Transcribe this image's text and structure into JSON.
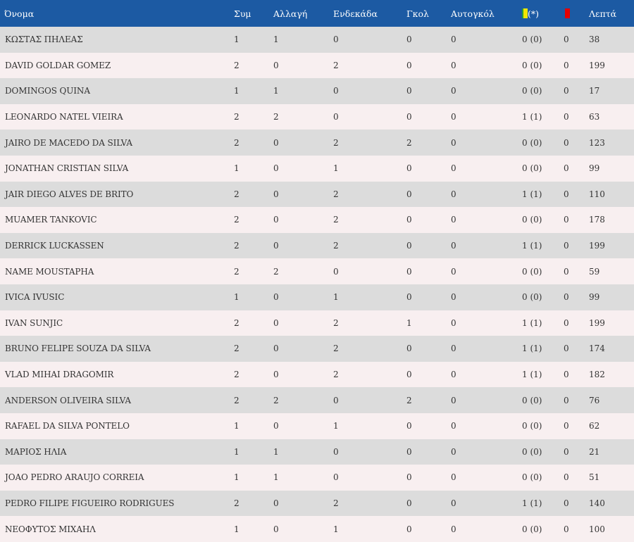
{
  "headers": {
    "name": "Όνομα",
    "apps": "Συμ",
    "subs": "Αλλαγή",
    "lineup": "Ενδεκάδα",
    "goals": "Γκολ",
    "own_goals": "Αυτογκόλ",
    "yellow_note": "(*)",
    "minutes": "Λεπτά"
  },
  "players": [
    {
      "name": "ΚΩΣΤΑΣ ΠΗΛΕΑΣ",
      "apps": "1",
      "subs": "1",
      "lineup": "0",
      "goals": "0",
      "own_goals": "0",
      "yellow": "0 (0)",
      "red": "0",
      "minutes": "38"
    },
    {
      "name": "DAVID GOLDAR GOMEZ",
      "apps": "2",
      "subs": "0",
      "lineup": "2",
      "goals": "0",
      "own_goals": "0",
      "yellow": "0 (0)",
      "red": "0",
      "minutes": "199"
    },
    {
      "name": "DOMINGOS QUINA",
      "apps": "1",
      "subs": "1",
      "lineup": "0",
      "goals": "0",
      "own_goals": "0",
      "yellow": "0 (0)",
      "red": "0",
      "minutes": "17"
    },
    {
      "name": "LEONARDO NATEL VIEIRA",
      "apps": "2",
      "subs": "2",
      "lineup": "0",
      "goals": "0",
      "own_goals": "0",
      "yellow": "1 (1)",
      "red": "0",
      "minutes": "63"
    },
    {
      "name": "JAIRO DE MACEDO DA SILVA",
      "apps": "2",
      "subs": "0",
      "lineup": "2",
      "goals": "2",
      "own_goals": "0",
      "yellow": "0 (0)",
      "red": "0",
      "minutes": "123"
    },
    {
      "name": "JONATHAN CRISTIAN SILVA",
      "apps": "1",
      "subs": "0",
      "lineup": "1",
      "goals": "0",
      "own_goals": "0",
      "yellow": "0 (0)",
      "red": "0",
      "minutes": "99"
    },
    {
      "name": "JAIR DIEGO ALVES DE BRITO",
      "apps": "2",
      "subs": "0",
      "lineup": "2",
      "goals": "0",
      "own_goals": "0",
      "yellow": "1 (1)",
      "red": "0",
      "minutes": "110"
    },
    {
      "name": "MUAMER TANKOVIC",
      "apps": "2",
      "subs": "0",
      "lineup": "2",
      "goals": "0",
      "own_goals": "0",
      "yellow": "0 (0)",
      "red": "0",
      "minutes": "178"
    },
    {
      "name": "DERRICK LUCKASSEN",
      "apps": "2",
      "subs": "0",
      "lineup": "2",
      "goals": "0",
      "own_goals": "0",
      "yellow": "1 (1)",
      "red": "0",
      "minutes": "199"
    },
    {
      "name": "NAME MOUSTAPHA",
      "apps": "2",
      "subs": "2",
      "lineup": "0",
      "goals": "0",
      "own_goals": "0",
      "yellow": "0 (0)",
      "red": "0",
      "minutes": "59"
    },
    {
      "name": "IVICA IVUSIC",
      "apps": "1",
      "subs": "0",
      "lineup": "1",
      "goals": "0",
      "own_goals": "0",
      "yellow": "0 (0)",
      "red": "0",
      "minutes": "99"
    },
    {
      "name": "IVAN SUNJIC",
      "apps": "2",
      "subs": "0",
      "lineup": "2",
      "goals": "1",
      "own_goals": "0",
      "yellow": "1 (1)",
      "red": "0",
      "minutes": "199"
    },
    {
      "name": "BRUNO FELIPE SOUZA DA SILVA",
      "apps": "2",
      "subs": "0",
      "lineup": "2",
      "goals": "0",
      "own_goals": "0",
      "yellow": "1 (1)",
      "red": "0",
      "minutes": "174"
    },
    {
      "name": "VLAD MIHAI DRAGOMIR",
      "apps": "2",
      "subs": "0",
      "lineup": "2",
      "goals": "0",
      "own_goals": "0",
      "yellow": "1 (1)",
      "red": "0",
      "minutes": "182"
    },
    {
      "name": "ANDERSON OLIVEIRA SILVA",
      "apps": "2",
      "subs": "2",
      "lineup": "0",
      "goals": "2",
      "own_goals": "0",
      "yellow": "0 (0)",
      "red": "0",
      "minutes": "76"
    },
    {
      "name": "RAFAEL DA SILVA PONTELO",
      "apps": "1",
      "subs": "0",
      "lineup": "1",
      "goals": "0",
      "own_goals": "0",
      "yellow": "0 (0)",
      "red": "0",
      "minutes": "62"
    },
    {
      "name": "ΜΑΡΙΟΣ ΗΛΙΑ",
      "apps": "1",
      "subs": "1",
      "lineup": "0",
      "goals": "0",
      "own_goals": "0",
      "yellow": "0 (0)",
      "red": "0",
      "minutes": "21"
    },
    {
      "name": "JOAO PEDRO ARAUJO CORREIA",
      "apps": "1",
      "subs": "1",
      "lineup": "0",
      "goals": "0",
      "own_goals": "0",
      "yellow": "0 (0)",
      "red": "0",
      "minutes": "51"
    },
    {
      "name": "PEDRO FILIPE FIGUEIRO RODRIGUES",
      "apps": "2",
      "subs": "0",
      "lineup": "2",
      "goals": "0",
      "own_goals": "0",
      "yellow": "1 (1)",
      "red": "0",
      "minutes": "140"
    },
    {
      "name": "ΝΕΟΦΥΤΟΣ ΜΙΧΑΗΛ",
      "apps": "1",
      "subs": "0",
      "lineup": "1",
      "goals": "0",
      "own_goals": "0",
      "yellow": "0 (0)",
      "red": "0",
      "minutes": "100"
    }
  ],
  "colors": {
    "header_bg": "#1c5aa3",
    "row_odd": "#dcdcdc",
    "row_even": "#f8eff0",
    "yellow_card": "#f2e600",
    "red_card": "#e60000"
  },
  "icons": {
    "yellow": "yellow-card-icon",
    "red": "red-card-icon"
  }
}
